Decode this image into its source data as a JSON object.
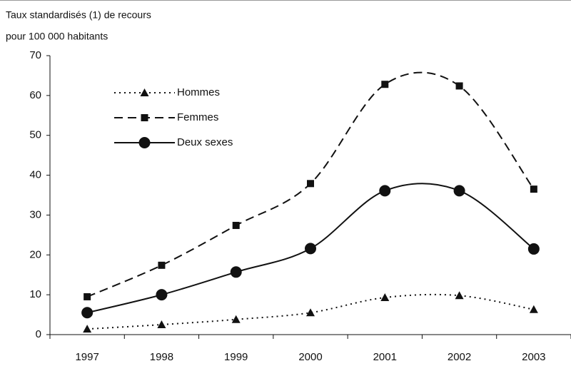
{
  "chart_data": {
    "type": "line",
    "y_label": [
      "Taux standardisés (1) de recours",
      "pour 100 000 habitants"
    ],
    "categories": [
      "1997",
      "1998",
      "1999",
      "2000",
      "2001",
      "2002",
      "2003"
    ],
    "series": [
      {
        "name": "Hommes",
        "color": "#111111",
        "marker": "triangle",
        "line_style": "dotted",
        "values": [
          1.4,
          2.5,
          3.8,
          5.5,
          9.3,
          9.8,
          6.3
        ]
      },
      {
        "name": "Femmes",
        "color": "#111111",
        "marker": "square",
        "line_style": "dashed",
        "values": [
          9.5,
          17.4,
          27.4,
          37.9,
          62.8,
          62.4,
          36.5
        ]
      },
      {
        "name": "Deux sexes",
        "color": "#111111",
        "marker": "circle",
        "line_style": "solid",
        "values": [
          5.5,
          10.0,
          15.7,
          21.6,
          36.1,
          36.1,
          21.5
        ]
      }
    ],
    "ylim": [
      0,
      70
    ],
    "yticks": [
      0,
      10,
      20,
      30,
      40,
      50,
      60,
      70
    ],
    "smooth": true,
    "legend": "upper-left"
  }
}
